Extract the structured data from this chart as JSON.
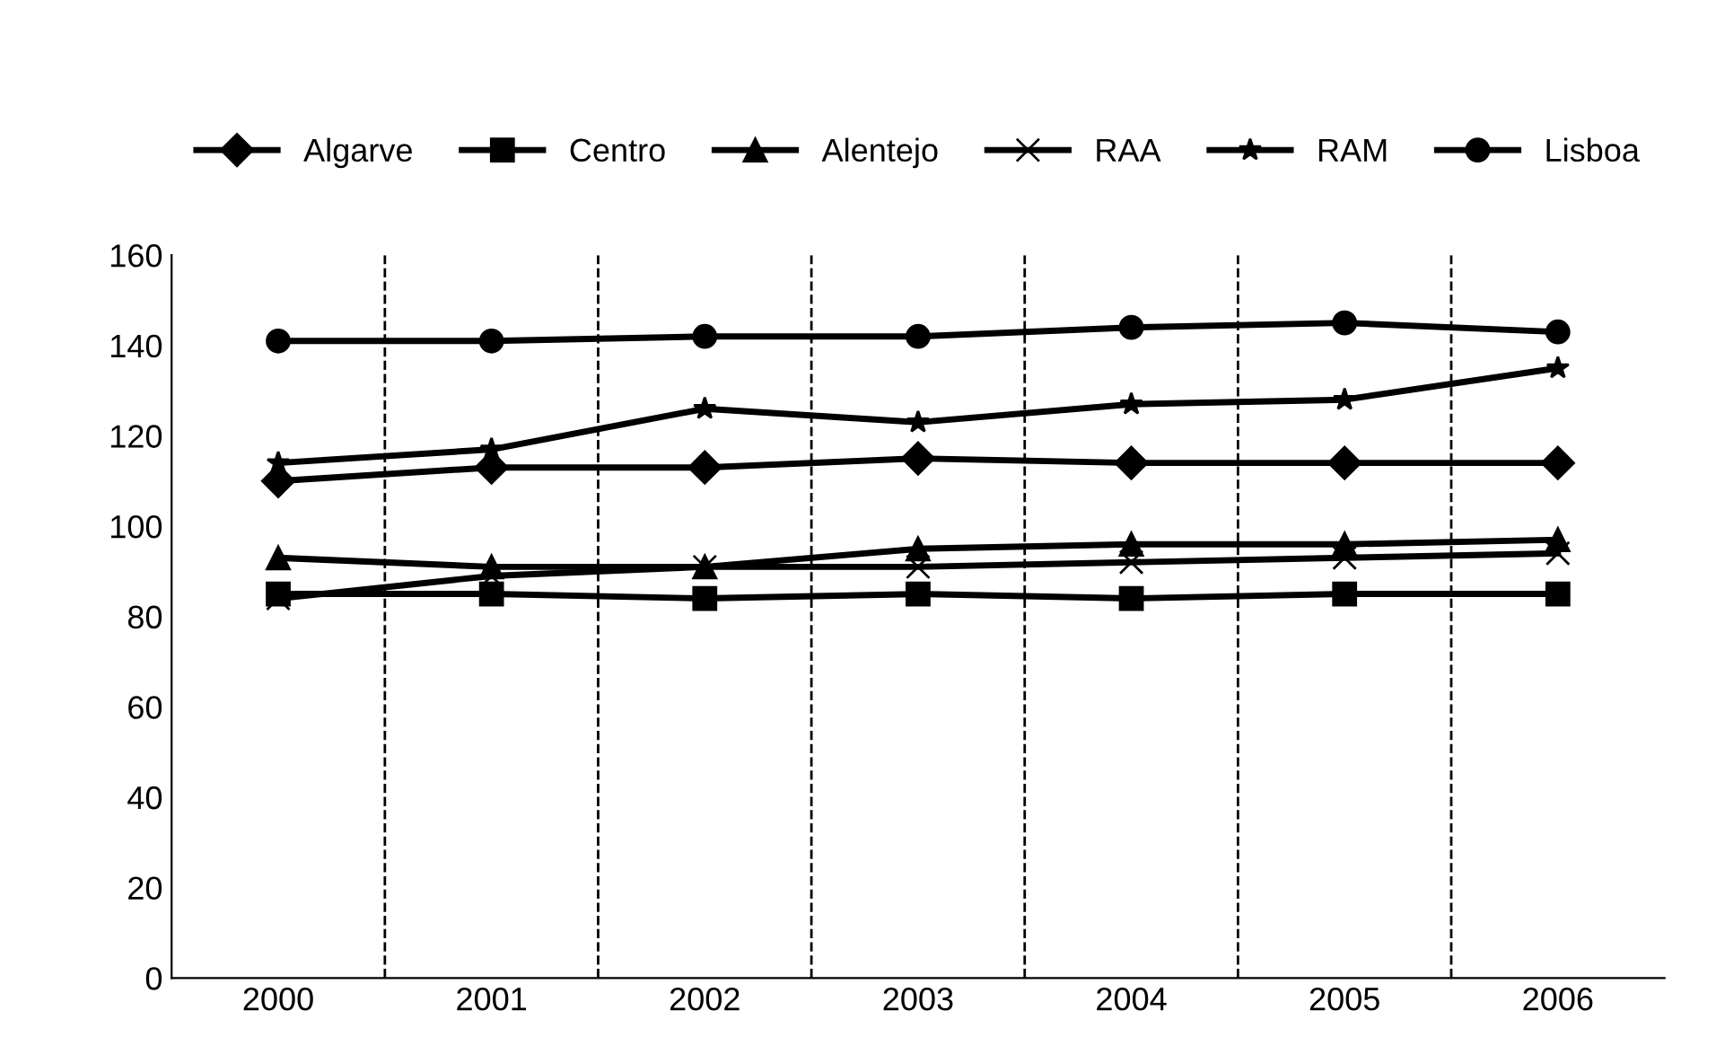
{
  "chart_data": {
    "type": "line",
    "categories": [
      "2000",
      "2001",
      "2002",
      "2003",
      "2004",
      "2005",
      "2006"
    ],
    "series": [
      {
        "name": "Algarve",
        "color": "#000000",
        "marker": "diamond",
        "values": [
          110,
          113,
          113,
          115,
          114,
          114,
          114
        ]
      },
      {
        "name": "Centro",
        "color": "#000000",
        "marker": "square",
        "values": [
          85,
          85,
          84,
          85,
          84,
          85,
          85
        ]
      },
      {
        "name": "Alentejo",
        "color": "#000000",
        "marker": "triangle",
        "values": [
          93,
          91,
          91,
          95,
          96,
          96,
          97
        ]
      },
      {
        "name": "RAA",
        "color": "#000000",
        "marker": "cross",
        "values": [
          84,
          89,
          91,
          91,
          92,
          93,
          94
        ]
      },
      {
        "name": "RAM",
        "color": "#000000",
        "marker": "star",
        "values": [
          114,
          117,
          126,
          123,
          127,
          128,
          135
        ]
      },
      {
        "name": "Lisboa",
        "color": "#000000",
        "marker": "circle",
        "values": [
          141,
          141,
          142,
          142,
          144,
          145,
          143
        ]
      }
    ],
    "ylim": [
      0,
      160
    ],
    "yticks": [
      0,
      20,
      40,
      60,
      80,
      100,
      120,
      140,
      160
    ],
    "grid": "x",
    "legend": "top",
    "line_style": "solid"
  }
}
